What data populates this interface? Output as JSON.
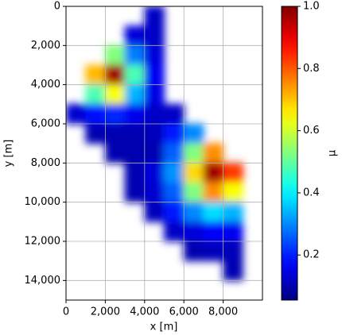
{
  "chart_data": {
    "type": "heatmap",
    "x": [
      500,
      1500,
      2500,
      3500,
      4500,
      5500,
      6500,
      7500,
      8500,
      9500
    ],
    "y": [
      500,
      1500,
      2500,
      3500,
      4500,
      5500,
      6500,
      7500,
      8500,
      9500,
      10500,
      11500,
      12500,
      13500,
      14500
    ],
    "z": [
      [
        null,
        null,
        null,
        null,
        0.12,
        null,
        null,
        null,
        null,
        null
      ],
      [
        null,
        null,
        null,
        0.14,
        0.12,
        null,
        null,
        null,
        null,
        null
      ],
      [
        null,
        null,
        0.53,
        0.29,
        0.14,
        null,
        null,
        null,
        null,
        null
      ],
      [
        null,
        0.71,
        0.97,
        0.48,
        0.16,
        null,
        null,
        null,
        null,
        null
      ],
      [
        null,
        0.48,
        0.64,
        0.34,
        0.15,
        null,
        null,
        null,
        null,
        null
      ],
      [
        0.13,
        0.18,
        0.21,
        0.16,
        0.12,
        0.12,
        null,
        null,
        null,
        null
      ],
      [
        null,
        0.1,
        0.1,
        0.1,
        0.11,
        0.19,
        0.3,
        null,
        null,
        null
      ],
      [
        null,
        null,
        0.1,
        0.1,
        0.1,
        0.26,
        0.53,
        0.75,
        null,
        null
      ],
      [
        null,
        null,
        null,
        0.1,
        0.14,
        0.31,
        0.68,
        0.97,
        0.83,
        null
      ],
      [
        null,
        null,
        null,
        0.1,
        0.13,
        0.26,
        0.53,
        0.75,
        0.64,
        null
      ],
      [
        null,
        null,
        null,
        null,
        0.11,
        0.19,
        0.3,
        0.38,
        0.34,
        null
      ],
      [
        null,
        null,
        null,
        null,
        null,
        0.12,
        0.14,
        0.17,
        0.16,
        null
      ],
      [
        null,
        null,
        null,
        null,
        null,
        null,
        0.1,
        0.11,
        0.11,
        null
      ],
      [
        null,
        null,
        null,
        null,
        null,
        null,
        null,
        null,
        0.1,
        null
      ],
      [
        null,
        null,
        null,
        null,
        null,
        null,
        null,
        null,
        null,
        null
      ]
    ],
    "colormap": "jet",
    "xlim": [
      0,
      10000
    ],
    "ylim": [
      15000,
      0
    ],
    "xticks": [
      0,
      {
        "value": 2000,
        "label": "2,000"
      },
      {
        "value": 4000,
        "label": "4,000"
      },
      {
        "value": 6000,
        "label": "6,000"
      },
      {
        "value": 8000,
        "label": "8,000"
      }
    ],
    "yticks": [
      0,
      {
        "value": 2000,
        "label": "2,000"
      },
      {
        "value": 4000,
        "label": "4,000"
      },
      {
        "value": 6000,
        "label": "6,000"
      },
      {
        "value": 8000,
        "label": "8,000"
      },
      {
        "value": 10000,
        "label": "10,000"
      },
      {
        "value": 12000,
        "label": "12,000"
      },
      {
        "value": 14000,
        "label": "14,000"
      }
    ],
    "xlabel": "x [m]",
    "ylabel": "y [m]",
    "grid": true,
    "colorbar": {
      "label": "μ",
      "lim": [
        0.055,
        1.0
      ],
      "ticks": [
        0.2,
        0.4,
        0.6,
        0.8,
        {
          "value": 1,
          "label": "1.0"
        }
      ]
    }
  }
}
